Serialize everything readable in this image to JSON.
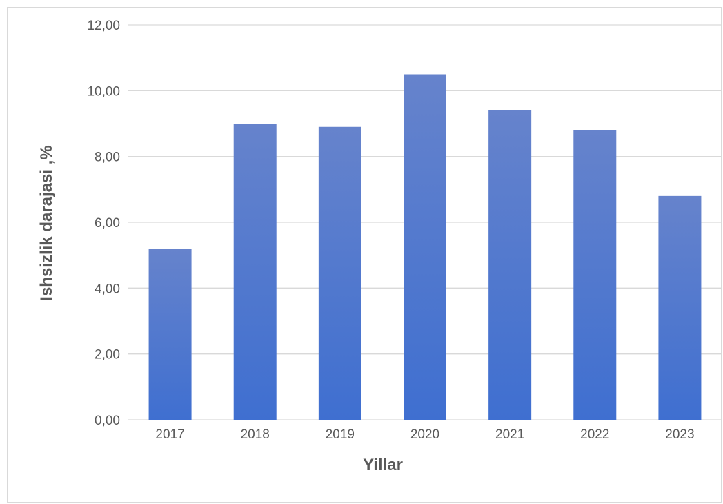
{
  "chart_data": {
    "type": "bar",
    "title": "",
    "xlabel": "Yillar",
    "ylabel": "Ishsizlik darajasi ,%",
    "categories": [
      "2017",
      "2018",
      "2019",
      "2020",
      "2021",
      "2022",
      "2023"
    ],
    "values": [
      5.2,
      9.0,
      8.9,
      10.5,
      9.4,
      8.8,
      6.8
    ],
    "ylim": [
      0,
      12
    ],
    "yticks": [
      0,
      2,
      4,
      6,
      8,
      10,
      12
    ],
    "ytick_labels": [
      "0,00",
      "2,00",
      "4,00",
      "6,00",
      "8,00",
      "10,00",
      "12,00"
    ],
    "grid": true,
    "legend": "none",
    "bar_color_top": "#6683CC",
    "bar_color_bottom": "#3F6FD0",
    "grid_color": "#D9D9D9"
  }
}
